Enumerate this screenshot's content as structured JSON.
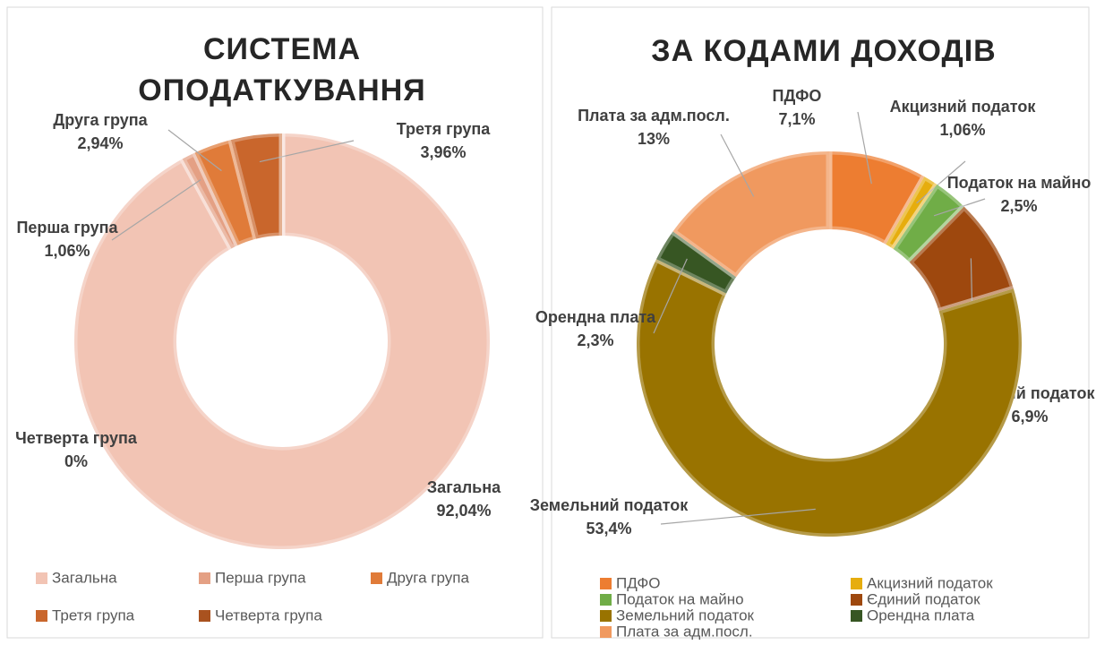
{
  "chart_data": [
    {
      "type": "donut",
      "title": "СИСТЕМА ОПОДАТКУВАННЯ",
      "categories": [
        "Загальна",
        "Перша група",
        "Друга група",
        "Третя група",
        "Четверта група"
      ],
      "values": [
        92.04,
        1.06,
        2.94,
        3.96,
        0
      ],
      "value_labels": [
        "92,04%",
        "1,06%",
        "2,94%",
        "3,96%",
        "0%"
      ],
      "colors": [
        "#f2c4b4",
        "#e4a084",
        "#e07b39",
        "#c9662c",
        "#a9521f"
      ],
      "legend": "bottom"
    },
    {
      "type": "donut",
      "title": "ЗА КОДАМИ ДОХОДІВ",
      "categories": [
        "ПДФО",
        "Акцизний податок",
        "Податок на майно",
        "Єдиний податок",
        "Земельний податок",
        "Орендна плата",
        "Плата за адм.посл."
      ],
      "values": [
        7.1,
        1.06,
        2.5,
        6.9,
        53.4,
        2.3,
        13
      ],
      "value_labels": [
        "7,1%",
        "1,06%",
        "2,5%",
        "6,9%",
        "53,4%",
        "2,3%",
        "13%"
      ],
      "colors": [
        "#ed7d31",
        "#e6ad0e",
        "#70ad47",
        "#9e480e",
        "#997300",
        "#375623",
        "#f0995f"
      ],
      "legend": "bottom"
    }
  ]
}
